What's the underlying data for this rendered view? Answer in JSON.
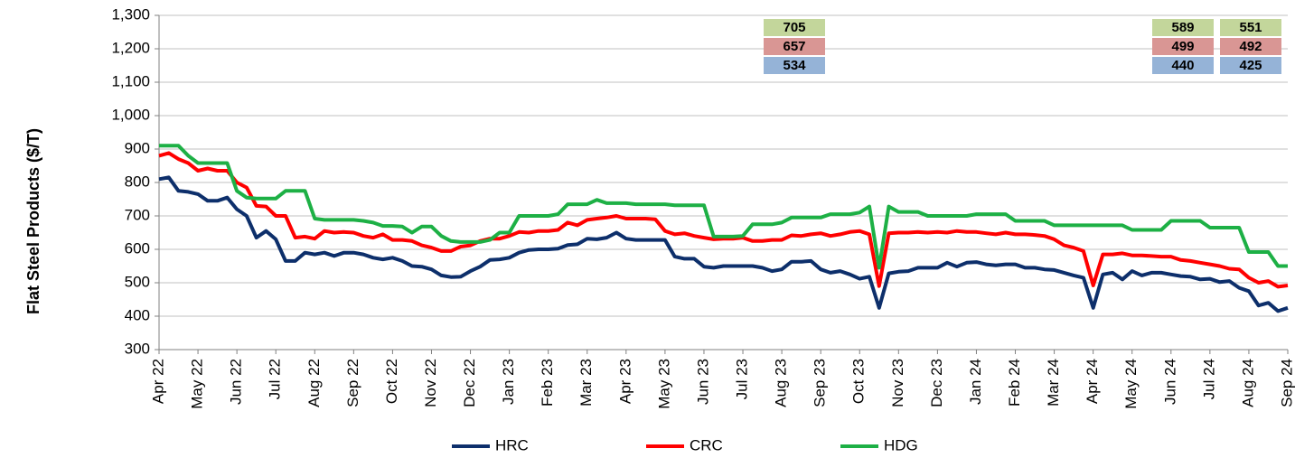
{
  "chart_data": {
    "type": "line",
    "ylabel": "Flat Steel Products ($/T)",
    "categories": [
      "Apr 22",
      null,
      null,
      null,
      "May 22",
      null,
      null,
      null,
      "Jun 22",
      null,
      null,
      null,
      "Jul 22",
      null,
      null,
      null,
      "Aug 22",
      null,
      null,
      null,
      "Sep 22",
      null,
      null,
      null,
      "Oct 22",
      null,
      null,
      null,
      "Nov 22",
      null,
      null,
      null,
      "Dec 22",
      null,
      null,
      null,
      "Jan 23",
      null,
      null,
      null,
      "Feb 23",
      null,
      null,
      null,
      "Mar 23",
      null,
      null,
      null,
      "Apr 23",
      null,
      null,
      null,
      "May 23",
      null,
      null,
      null,
      "Jun 23",
      null,
      null,
      null,
      "Jul 23",
      null,
      null,
      null,
      "Aug 23",
      null,
      null,
      null,
      "Sep 23",
      null,
      null,
      null,
      "Oct 23",
      null,
      null,
      null,
      "Nov 23",
      null,
      null,
      null,
      "Dec 23",
      null,
      null,
      null,
      "Jan 24",
      null,
      null,
      null,
      "Feb 24",
      null,
      null,
      null,
      "Mar 24",
      null,
      null,
      null,
      "Apr 24",
      null,
      null,
      null,
      "May 24",
      null,
      null,
      null,
      "Jun 24",
      null,
      null,
      null,
      "Jul 24",
      null,
      null,
      null,
      "Aug 24",
      null,
      null,
      null,
      "Sep 24"
    ],
    "series": [
      {
        "name": "HRC",
        "color": "#0d2f6b",
        "values": [
          810,
          815,
          775,
          772,
          765,
          745,
          745,
          755,
          720,
          700,
          635,
          655,
          630,
          565,
          565,
          590,
          585,
          590,
          580,
          590,
          590,
          585,
          575,
          570,
          575,
          565,
          550,
          548,
          540,
          522,
          517,
          518,
          535,
          548,
          568,
          570,
          575,
          590,
          598,
          600,
          600,
          602,
          613,
          615,
          632,
          630,
          635,
          650,
          632,
          628,
          628,
          628,
          628,
          578,
          572,
          572,
          548,
          545,
          550,
          550,
          550,
          550,
          545,
          535,
          540,
          563,
          563,
          565,
          540,
          530,
          535,
          525,
          512,
          518,
          425,
          528,
          533,
          535,
          545,
          545,
          545,
          560,
          548,
          560,
          562,
          555,
          552,
          555,
          555,
          545,
          545,
          540,
          538,
          530,
          522,
          515,
          425,
          525,
          530,
          510,
          535,
          522,
          530,
          530,
          525,
          520,
          518,
          510,
          512,
          502,
          505,
          485,
          475,
          432,
          440,
          415,
          425
        ]
      },
      {
        "name": "CRC",
        "color": "#ff0000",
        "values": [
          880,
          888,
          870,
          858,
          835,
          842,
          835,
          835,
          800,
          785,
          730,
          728,
          700,
          700,
          635,
          638,
          632,
          655,
          650,
          652,
          650,
          640,
          635,
          645,
          628,
          628,
          625,
          612,
          605,
          595,
          595,
          608,
          612,
          625,
          632,
          632,
          640,
          652,
          650,
          655,
          655,
          658,
          680,
          672,
          688,
          692,
          695,
          700,
          692,
          692,
          692,
          690,
          655,
          645,
          648,
          640,
          635,
          630,
          632,
          632,
          635,
          625,
          625,
          628,
          628,
          642,
          640,
          645,
          648,
          640,
          645,
          652,
          655,
          645,
          490,
          648,
          650,
          650,
          652,
          650,
          652,
          650,
          655,
          652,
          652,
          648,
          645,
          650,
          645,
          645,
          643,
          640,
          630,
          612,
          605,
          595,
          492,
          585,
          585,
          588,
          582,
          582,
          580,
          578,
          578,
          568,
          565,
          560,
          555,
          550,
          542,
          540,
          515,
          500,
          505,
          488,
          492
        ]
      },
      {
        "name": "HDG",
        "color": "#1db045",
        "values": [
          910,
          910,
          910,
          880,
          858,
          858,
          858,
          858,
          775,
          755,
          752,
          752,
          752,
          775,
          775,
          775,
          692,
          688,
          688,
          688,
          688,
          685,
          680,
          670,
          670,
          668,
          650,
          668,
          668,
          640,
          625,
          622,
          622,
          622,
          628,
          650,
          650,
          700,
          700,
          700,
          700,
          705,
          735,
          735,
          735,
          748,
          738,
          738,
          738,
          735,
          735,
          735,
          735,
          732,
          732,
          732,
          732,
          638,
          638,
          638,
          640,
          675,
          675,
          675,
          680,
          695,
          695,
          695,
          695,
          705,
          705,
          705,
          710,
          728,
          545,
          728,
          712,
          712,
          712,
          700,
          700,
          700,
          700,
          700,
          705,
          705,
          705,
          705,
          685,
          685,
          685,
          685,
          672,
          672,
          672,
          672,
          672,
          672,
          672,
          672,
          658,
          658,
          658,
          658,
          685,
          685,
          685,
          685,
          665,
          665,
          665,
          665,
          592,
          592,
          592,
          550,
          550
        ]
      }
    ],
    "ylim": [
      300,
      1300
    ],
    "yticks": [
      300,
      400,
      500,
      600,
      700,
      800,
      900,
      {
        "value": 1000,
        "label": "1,000"
      },
      {
        "value": 1100,
        "label": "1,100"
      },
      {
        "value": 1200,
        "label": "1,200"
      },
      {
        "value": 1300,
        "label": "1,300"
      }
    ],
    "grid": true,
    "legend": "bottom",
    "annotations": [
      [
        "705",
        "657",
        "534"
      ],
      [
        "589",
        "499",
        "440"
      ],
      [
        "551",
        "492",
        "425"
      ]
    ],
    "annotation_colors": [
      "#c3d69b",
      "#d99694",
      "#95b3d7"
    ]
  }
}
